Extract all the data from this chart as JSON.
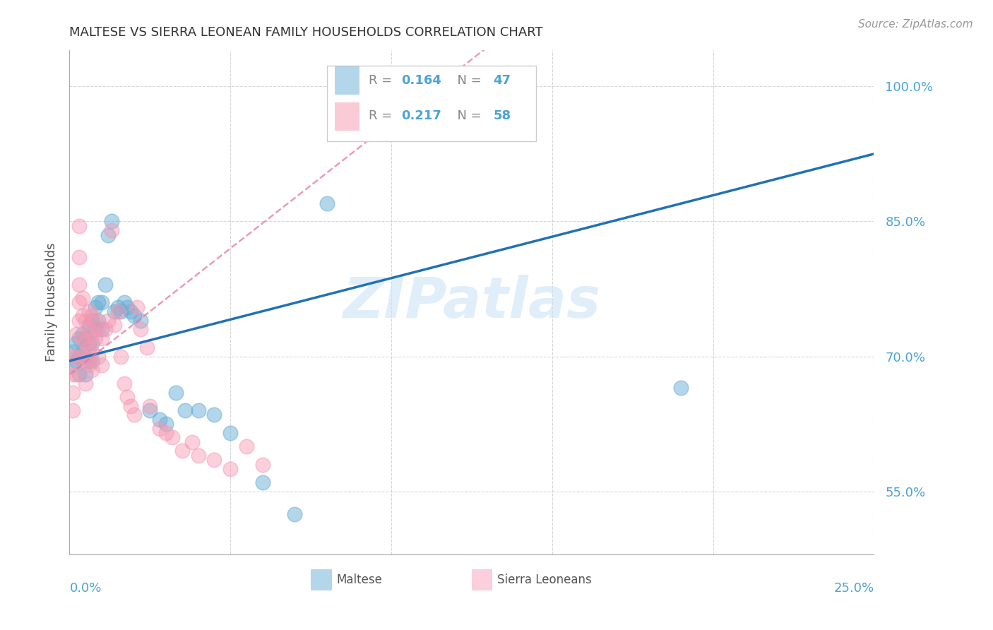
{
  "title": "MALTESE VS SIERRA LEONEAN FAMILY HOUSEHOLDS CORRELATION CHART",
  "source": "Source: ZipAtlas.com",
  "ylabel": "Family Households",
  "yticks": [
    "55.0%",
    "70.0%",
    "85.0%",
    "100.0%"
  ],
  "ytick_values": [
    0.55,
    0.7,
    0.85,
    1.0
  ],
  "xlim": [
    0.0,
    0.25
  ],
  "ylim": [
    0.48,
    1.04
  ],
  "watermark": "ZIPatlas",
  "legend_maltese_R": "0.164",
  "legend_maltese_N": "47",
  "legend_sierra_R": "0.217",
  "legend_sierra_N": "58",
  "maltese_color": "#6baed6",
  "sierra_color": "#f796b0",
  "maltese_line_color": "#2171b5",
  "sierra_line_color": "#e8799a",
  "maltese_x": [
    0.001,
    0.001,
    0.002,
    0.002,
    0.003,
    0.003,
    0.003,
    0.004,
    0.004,
    0.005,
    0.005,
    0.005,
    0.006,
    0.006,
    0.006,
    0.007,
    0.007,
    0.007,
    0.008,
    0.008,
    0.009,
    0.009,
    0.01,
    0.01,
    0.011,
    0.012,
    0.013,
    0.014,
    0.015,
    0.016,
    0.017,
    0.018,
    0.019,
    0.02,
    0.022,
    0.025,
    0.028,
    0.03,
    0.033,
    0.036,
    0.04,
    0.045,
    0.05,
    0.06,
    0.07,
    0.08,
    0.19
  ],
  "maltese_y": [
    0.705,
    0.69,
    0.715,
    0.695,
    0.72,
    0.7,
    0.68,
    0.725,
    0.705,
    0.72,
    0.7,
    0.68,
    0.735,
    0.715,
    0.695,
    0.74,
    0.715,
    0.695,
    0.755,
    0.73,
    0.76,
    0.74,
    0.76,
    0.73,
    0.78,
    0.835,
    0.85,
    0.75,
    0.755,
    0.75,
    0.76,
    0.755,
    0.75,
    0.745,
    0.74,
    0.64,
    0.63,
    0.625,
    0.66,
    0.64,
    0.64,
    0.635,
    0.615,
    0.56,
    0.525,
    0.87,
    0.665
  ],
  "sierra_x": [
    0.001,
    0.001,
    0.001,
    0.001,
    0.002,
    0.002,
    0.002,
    0.003,
    0.003,
    0.003,
    0.003,
    0.003,
    0.004,
    0.004,
    0.004,
    0.004,
    0.005,
    0.005,
    0.005,
    0.005,
    0.006,
    0.006,
    0.006,
    0.006,
    0.007,
    0.007,
    0.007,
    0.007,
    0.008,
    0.008,
    0.009,
    0.009,
    0.01,
    0.01,
    0.011,
    0.012,
    0.013,
    0.014,
    0.015,
    0.016,
    0.017,
    0.018,
    0.019,
    0.02,
    0.021,
    0.022,
    0.024,
    0.025,
    0.028,
    0.03,
    0.032,
    0.035,
    0.038,
    0.04,
    0.045,
    0.05,
    0.055,
    0.06
  ],
  "sierra_y": [
    0.7,
    0.68,
    0.66,
    0.64,
    0.725,
    0.7,
    0.68,
    0.845,
    0.81,
    0.78,
    0.76,
    0.74,
    0.765,
    0.745,
    0.72,
    0.7,
    0.74,
    0.715,
    0.695,
    0.67,
    0.75,
    0.73,
    0.71,
    0.69,
    0.745,
    0.725,
    0.705,
    0.685,
    0.74,
    0.72,
    0.73,
    0.7,
    0.72,
    0.69,
    0.73,
    0.74,
    0.84,
    0.735,
    0.75,
    0.7,
    0.67,
    0.655,
    0.645,
    0.635,
    0.755,
    0.73,
    0.71,
    0.645,
    0.62,
    0.615,
    0.61,
    0.595,
    0.605,
    0.59,
    0.585,
    0.575,
    0.6,
    0.58
  ],
  "maltese_line_intercept": 0.695,
  "maltese_line_slope": 0.92,
  "sierra_line_intercept": 0.68,
  "sierra_line_slope": 2.8
}
